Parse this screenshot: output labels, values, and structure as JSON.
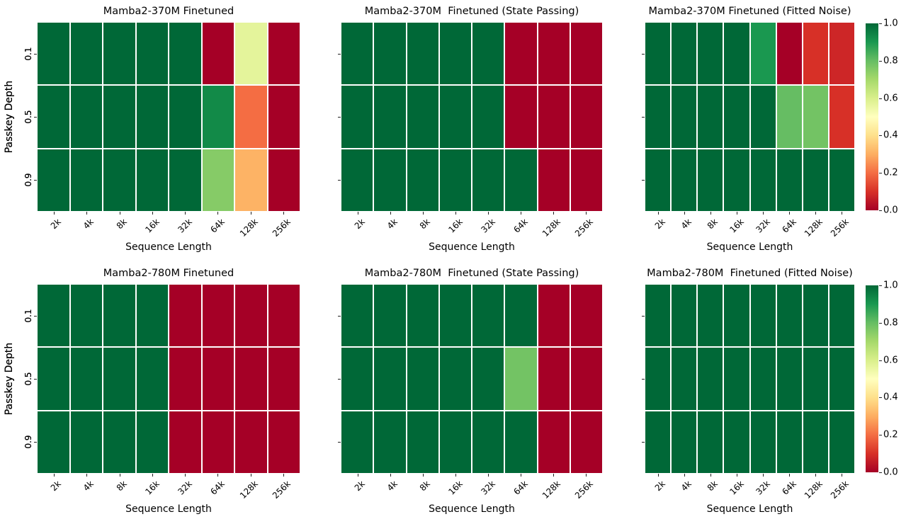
{
  "figure": {
    "background": "#ffffff",
    "text_color": "#000000",
    "colormap": {
      "name": "RdYlGn",
      "stops": [
        "#a50026",
        "#d73027",
        "#f46d43",
        "#fdae61",
        "#fee08b",
        "#ffffbf",
        "#d9ef8b",
        "#a6d96a",
        "#66bd63",
        "#1a9850",
        "#006837"
      ]
    },
    "colorbar": {
      "position": "right",
      "vmin": 0.0,
      "vmax": 1.0,
      "ticks": [
        "1.0",
        "0.8",
        "0.6",
        "0.4",
        "0.2",
        "0.0"
      ]
    },
    "grid_layout": "2 rows x 3 columns, one shared colorbar per row"
  },
  "chart_data": [
    {
      "type": "heatmap",
      "title": "Mamba2-370M Finetuned",
      "xlabel": "Sequence Length",
      "ylabel": "Passkey Depth",
      "categories_x": [
        "2k",
        "4k",
        "8k",
        "16k",
        "32k",
        "64k",
        "128k",
        "256k"
      ],
      "categories_y": [
        "0.1",
        "0.5",
        "0.9"
      ],
      "vmin": 0.0,
      "vmax": 1.0,
      "values": [
        [
          1.0,
          1.0,
          1.0,
          1.0,
          1.0,
          0.0,
          0.57,
          0.0
        ],
        [
          1.0,
          1.0,
          1.0,
          1.0,
          1.0,
          0.93,
          0.2,
          0.0
        ],
        [
          1.0,
          1.0,
          1.0,
          1.0,
          1.0,
          0.75,
          0.31,
          0.0
        ]
      ]
    },
    {
      "type": "heatmap",
      "title": "Mamba2-370M  Finetuned (State Passing)",
      "xlabel": "Sequence Length",
      "ylabel": "Passkey Depth",
      "categories_x": [
        "2k",
        "4k",
        "8k",
        "16k",
        "32k",
        "64k",
        "128k",
        "256k"
      ],
      "categories_y": [
        "0.1",
        "0.5",
        "0.9"
      ],
      "vmin": 0.0,
      "vmax": 1.0,
      "values": [
        [
          1.0,
          1.0,
          1.0,
          1.0,
          1.0,
          0.0,
          0.0,
          0.0
        ],
        [
          1.0,
          1.0,
          1.0,
          1.0,
          1.0,
          0.0,
          0.0,
          0.0
        ],
        [
          1.0,
          1.0,
          1.0,
          1.0,
          1.0,
          1.0,
          0.0,
          0.0
        ]
      ]
    },
    {
      "type": "heatmap",
      "title": "Mamba2-370M Finetuned (Fitted Noise)",
      "xlabel": "Sequence Length",
      "ylabel": "Passkey Depth",
      "categories_x": [
        "2k",
        "4k",
        "8k",
        "16k",
        "32k",
        "64k",
        "128k",
        "256k"
      ],
      "categories_y": [
        "0.1",
        "0.5",
        "0.9"
      ],
      "vmin": 0.0,
      "vmax": 1.0,
      "values": [
        [
          1.0,
          1.0,
          1.0,
          1.0,
          0.9,
          0.0,
          0.1,
          0.08
        ],
        [
          1.0,
          1.0,
          1.0,
          1.0,
          1.0,
          0.8,
          0.78,
          0.1
        ],
        [
          1.0,
          1.0,
          1.0,
          1.0,
          1.0,
          1.0,
          1.0,
          1.0
        ]
      ]
    },
    {
      "type": "heatmap",
      "title": "Mamba2-780M Finetuned",
      "xlabel": "Sequence Length",
      "ylabel": "Passkey Depth",
      "categories_x": [
        "2k",
        "4k",
        "8k",
        "16k",
        "32k",
        "64k",
        "128k",
        "256k"
      ],
      "categories_y": [
        "0.1",
        "0.5",
        "0.9"
      ],
      "vmin": 0.0,
      "vmax": 1.0,
      "values": [
        [
          1.0,
          1.0,
          1.0,
          1.0,
          0.0,
          0.0,
          0.0,
          0.0
        ],
        [
          1.0,
          1.0,
          1.0,
          1.0,
          0.0,
          0.0,
          0.0,
          0.0
        ],
        [
          1.0,
          1.0,
          1.0,
          1.0,
          0.0,
          0.0,
          0.0,
          0.0
        ]
      ]
    },
    {
      "type": "heatmap",
      "title": "Mamba2-780M  Finetuned (State Passing)",
      "xlabel": "Sequence Length",
      "ylabel": "Passkey Depth",
      "categories_x": [
        "2k",
        "4k",
        "8k",
        "16k",
        "32k",
        "64k",
        "128k",
        "256k"
      ],
      "categories_y": [
        "0.1",
        "0.5",
        "0.9"
      ],
      "vmin": 0.0,
      "vmax": 1.0,
      "values": [
        [
          1.0,
          1.0,
          1.0,
          1.0,
          1.0,
          1.0,
          0.0,
          0.0
        ],
        [
          1.0,
          1.0,
          1.0,
          1.0,
          1.0,
          0.78,
          0.0,
          0.0
        ],
        [
          1.0,
          1.0,
          1.0,
          1.0,
          1.0,
          1.0,
          0.0,
          0.0
        ]
      ]
    },
    {
      "type": "heatmap",
      "title": "Mamba2-780M  Finetuned (Fitted Noise)",
      "xlabel": "Sequence Length",
      "ylabel": "Passkey Depth",
      "categories_x": [
        "2k",
        "4k",
        "8k",
        "16k",
        "32k",
        "64k",
        "128k",
        "256k"
      ],
      "categories_y": [
        "0.1",
        "0.5",
        "0.9"
      ],
      "vmin": 0.0,
      "vmax": 1.0,
      "values": [
        [
          1.0,
          1.0,
          1.0,
          1.0,
          1.0,
          1.0,
          1.0,
          1.0
        ],
        [
          1.0,
          1.0,
          1.0,
          1.0,
          1.0,
          1.0,
          1.0,
          1.0
        ],
        [
          1.0,
          1.0,
          1.0,
          1.0,
          1.0,
          1.0,
          1.0,
          1.0
        ]
      ]
    }
  ]
}
